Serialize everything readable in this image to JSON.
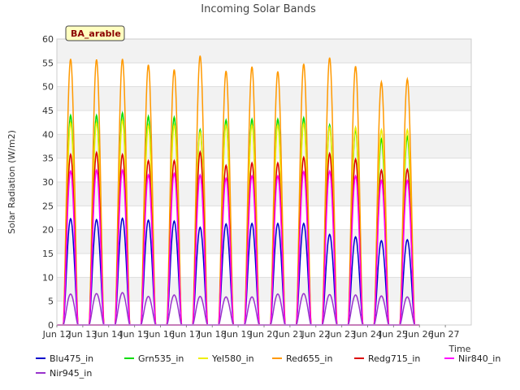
{
  "chart_data": {
    "type": "line",
    "title": "Incoming Solar Bands",
    "xlabel": "Time",
    "ylabel": "Solar Radiation (W/m2)",
    "site_label": "BA_arable",
    "ylim": [
      0,
      60
    ],
    "yticks": [
      0,
      5,
      10,
      15,
      20,
      25,
      30,
      35,
      40,
      45,
      50,
      55,
      60
    ],
    "xlim": [
      11,
      27
    ],
    "xticks": [
      {
        "day": 11,
        "label": "Jun 12"
      },
      {
        "day": 12,
        "label": "Jun 13"
      },
      {
        "day": 13,
        "label": "Jun 14"
      },
      {
        "day": 14,
        "label": "Jun 15"
      },
      {
        "day": 15,
        "label": "Jun 16"
      },
      {
        "day": 16,
        "label": "Jun 17"
      },
      {
        "day": 17,
        "label": "Jun 18"
      },
      {
        "day": 18,
        "label": "Jun 19"
      },
      {
        "day": 19,
        "label": "Jun 20"
      },
      {
        "day": 20,
        "label": "Jun 21"
      },
      {
        "day": 21,
        "label": "Jun 22"
      },
      {
        "day": 22,
        "label": "Jun 23"
      },
      {
        "day": 23,
        "label": "Jun 24"
      },
      {
        "day": 24,
        "label": "Jun 25"
      },
      {
        "day": 25,
        "label": "Jun 26"
      },
      {
        "day": 26,
        "label": "Jun 27"
      }
    ],
    "x_tick_prefix": "Jun",
    "days": [
      12,
      13,
      14,
      15,
      16,
      17,
      18,
      19,
      20,
      21,
      22,
      23,
      24,
      25
    ],
    "day_start_hour": 6,
    "day_end_hour": 19.5,
    "grid": true,
    "legend_position": "bottom",
    "series": [
      {
        "name": "Blu475_in",
        "color": "#0000cc",
        "daily_peaks": [
          22.3,
          22.1,
          22.4,
          22.0,
          21.8,
          20.5,
          21.2,
          21.3,
          21.3,
          21.3,
          19.0,
          18.5,
          17.7,
          17.9
        ]
      },
      {
        "name": "Grn535_in",
        "color": "#00dd00",
        "daily_peaks": [
          44.0,
          44.0,
          44.5,
          43.8,
          43.6,
          41.0,
          43.0,
          43.2,
          43.2,
          43.5,
          42.0,
          41.0,
          39.0,
          39.5
        ]
      },
      {
        "name": "Yel580_in",
        "color": "#eeee00",
        "daily_peaks": [
          42.5,
          42.5,
          43.0,
          42.0,
          42.0,
          40.5,
          42.0,
          42.0,
          42.0,
          42.3,
          41.5,
          41.5,
          41.0,
          41.0
        ]
      },
      {
        "name": "Red655_in",
        "color": "#ff9900",
        "daily_peaks": [
          55.8,
          55.7,
          55.8,
          54.6,
          53.6,
          56.5,
          53.3,
          54.2,
          53.2,
          54.8,
          56.1,
          54.3,
          51.0,
          51.6
        ]
      },
      {
        "name": "Redg715_in",
        "color": "#dd0000",
        "daily_peaks": [
          35.8,
          36.2,
          35.8,
          34.5,
          34.5,
          36.3,
          33.5,
          34.0,
          34.0,
          35.2,
          36.0,
          34.8,
          32.5,
          32.7
        ]
      },
      {
        "name": "Nir840_in",
        "color": "#ff00ff",
        "daily_peaks": [
          32.3,
          32.5,
          32.5,
          31.5,
          31.8,
          31.5,
          30.8,
          31.3,
          31.3,
          32.2,
          32.3,
          31.3,
          30.3,
          30.3
        ]
      },
      {
        "name": "Nir945_in",
        "color": "#9933cc",
        "daily_peaks": [
          6.5,
          6.6,
          6.8,
          6.0,
          6.3,
          6.0,
          5.9,
          5.9,
          6.5,
          6.6,
          6.4,
          6.3,
          6.1,
          5.9
        ]
      }
    ]
  }
}
